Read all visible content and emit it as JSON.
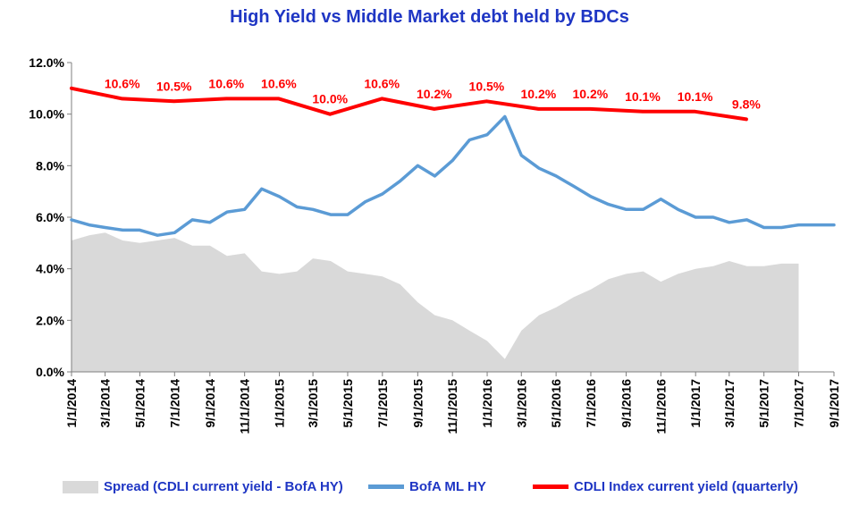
{
  "chart_data": {
    "type": "line",
    "title": "High Yield  vs  Middle Market debt held by BDCs",
    "xlabel": "",
    "ylabel": "",
    "ylim": [
      0.0,
      12.0
    ],
    "y_ticks": [
      "0.0%",
      "2.0%",
      "4.0%",
      "6.0%",
      "8.0%",
      "10.0%",
      "12.0%"
    ],
    "x_ticks": [
      "1/1/2014",
      "3/1/2014",
      "5/1/2014",
      "7/1/2014",
      "9/1/2014",
      "11/1/2014",
      "1/1/2015",
      "3/1/2015",
      "5/1/2015",
      "7/1/2015",
      "9/1/2015",
      "11/1/2015",
      "1/1/2016",
      "3/1/2016",
      "5/1/2016",
      "7/1/2016",
      "9/1/2016",
      "11/1/2016",
      "1/1/2017",
      "3/1/2017",
      "5/1/2017",
      "7/1/2017",
      "9/1/2017"
    ],
    "legend_position": "bottom",
    "grid": false,
    "series": [
      {
        "name": "Spread (CDLI current yield - BofA HY)",
        "type": "area",
        "color": "#d9d9d9",
        "x": [
          "1/1/2014",
          "2/1/2014",
          "3/1/2014",
          "4/1/2014",
          "5/1/2014",
          "6/1/2014",
          "7/1/2014",
          "8/1/2014",
          "9/1/2014",
          "10/1/2014",
          "11/1/2014",
          "12/1/2014",
          "1/1/2015",
          "2/1/2015",
          "3/1/2015",
          "4/1/2015",
          "5/1/2015",
          "6/1/2015",
          "7/1/2015",
          "8/1/2015",
          "9/1/2015",
          "10/1/2015",
          "11/1/2015",
          "12/1/2015",
          "1/1/2016",
          "2/1/2016",
          "3/1/2016",
          "4/1/2016",
          "5/1/2016",
          "6/1/2016",
          "7/1/2016",
          "8/1/2016",
          "9/1/2016",
          "10/1/2016",
          "11/1/2016",
          "12/1/2016",
          "1/1/2017",
          "2/1/2017",
          "3/1/2017",
          "4/1/2017",
          "5/1/2017",
          "6/1/2017",
          "7/1/2017"
        ],
        "values": [
          5.1,
          5.3,
          5.4,
          5.1,
          5.0,
          5.1,
          5.2,
          4.9,
          4.9,
          4.5,
          4.6,
          3.9,
          3.8,
          3.9,
          4.4,
          4.3,
          3.9,
          3.8,
          3.7,
          3.4,
          2.7,
          2.2,
          2.0,
          1.6,
          1.2,
          0.5,
          1.6,
          2.2,
          2.5,
          2.9,
          3.2,
          3.6,
          3.8,
          3.9,
          3.5,
          3.8,
          4.0,
          4.1,
          4.3,
          4.1,
          4.1,
          4.2,
          4.2
        ]
      },
      {
        "name": "BofA ML HY",
        "type": "line",
        "color": "#5b9bd5",
        "x": [
          "1/1/2014",
          "2/1/2014",
          "3/1/2014",
          "4/1/2014",
          "5/1/2014",
          "6/1/2014",
          "7/1/2014",
          "8/1/2014",
          "9/1/2014",
          "10/1/2014",
          "11/1/2014",
          "12/1/2014",
          "1/1/2015",
          "2/1/2015",
          "3/1/2015",
          "4/1/2015",
          "5/1/2015",
          "6/1/2015",
          "7/1/2015",
          "8/1/2015",
          "9/1/2015",
          "10/1/2015",
          "11/1/2015",
          "12/1/2015",
          "1/1/2016",
          "2/1/2016",
          "3/1/2016",
          "4/1/2016",
          "5/1/2016",
          "6/1/2016",
          "7/1/2016",
          "8/1/2016",
          "9/1/2016",
          "10/1/2016",
          "11/1/2016",
          "12/1/2016",
          "1/1/2017",
          "2/1/2017",
          "3/1/2017",
          "4/1/2017",
          "5/1/2017",
          "6/1/2017",
          "7/1/2017",
          "8/1/2017",
          "9/1/2017"
        ],
        "values": [
          5.9,
          5.7,
          5.6,
          5.5,
          5.5,
          5.3,
          5.4,
          5.9,
          5.8,
          6.2,
          6.3,
          7.1,
          6.8,
          6.4,
          6.3,
          6.1,
          6.1,
          6.6,
          6.9,
          7.4,
          8.0,
          7.6,
          8.2,
          9.0,
          9.2,
          9.9,
          8.4,
          7.9,
          7.6,
          7.2,
          6.8,
          6.5,
          6.3,
          6.3,
          6.7,
          6.3,
          6.0,
          6.0,
          5.8,
          5.9,
          5.6,
          5.6,
          5.7,
          5.7,
          5.7
        ]
      },
      {
        "name": "CDLI Index current yield (quarterly)",
        "type": "line",
        "color": "#ff0000",
        "x": [
          "12/31/2013",
          "3/31/2014",
          "6/30/2014",
          "9/30/2014",
          "12/31/2014",
          "3/31/2015",
          "6/30/2015",
          "9/30/2015",
          "12/31/2015",
          "3/31/2016",
          "6/30/2016",
          "9/30/2016",
          "12/31/2016",
          "3/31/2017"
        ],
        "values": [
          11.0,
          10.6,
          10.5,
          10.6,
          10.6,
          10.0,
          10.6,
          10.2,
          10.5,
          10.2,
          10.2,
          10.1,
          10.1,
          9.8
        ],
        "data_labels": [
          "",
          "10.6%",
          "10.5%",
          "10.6%",
          "10.6%",
          "10.0%",
          "10.6%",
          "10.2%",
          "10.5%",
          "10.2%",
          "10.2%",
          "10.1%",
          "10.1%",
          "9.8%"
        ]
      }
    ]
  },
  "legend": {
    "items": [
      {
        "label": "Spread (CDLI current yield - BofA HY)",
        "color": "#d9d9d9"
      },
      {
        "label": "BofA ML HY",
        "color": "#5b9bd5"
      },
      {
        "label": "CDLI Index current yield (quarterly)",
        "color": "#ff0000"
      }
    ]
  }
}
